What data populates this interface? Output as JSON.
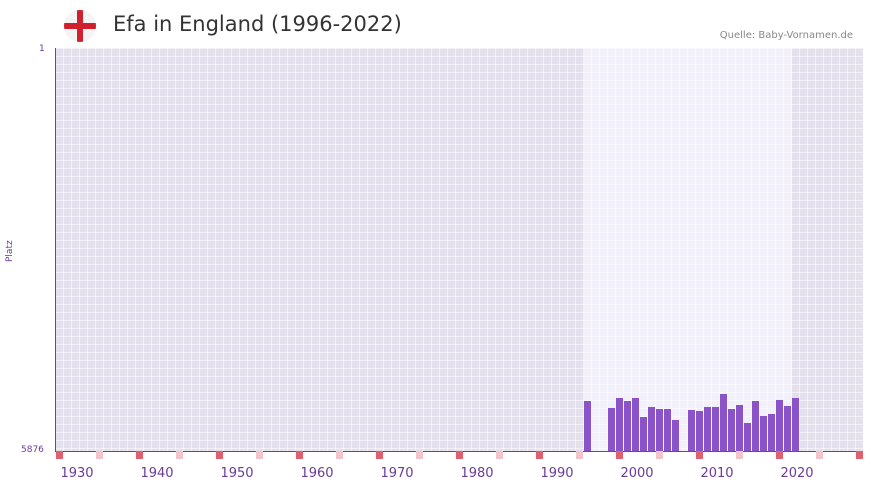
{
  "header": {
    "title": "Efa in England (1996-2022)",
    "source": "Quelle: Baby-Vornamen.de",
    "flag_icon": "england-flag-icon"
  },
  "colors": {
    "bar": "#8a54c8",
    "plot_bg": "#e4e0ee",
    "highlight_bg": "#f2f0fa",
    "marker_major": "#e06070",
    "marker_minor": "#f2c4cc",
    "axis": "#7a3b9e"
  },
  "chart_data": {
    "type": "bar",
    "title": "Efa in England (1996-2022)",
    "xlabel": "",
    "ylabel": "Platz",
    "y_inverted": true,
    "ylim": [
      5876,
      1
    ],
    "y_ticks": [
      "1",
      "5876"
    ],
    "x_ticks": [
      "1930",
      "1940",
      "1950",
      "1960",
      "1970",
      "1980",
      "1990",
      "2000",
      "2010",
      "2020"
    ],
    "xlim": [
      1929,
      2029
    ],
    "highlight_range": [
      1995,
      2021
    ],
    "categories": [
      1995,
      1998,
      1999,
      2000,
      2001,
      2002,
      2003,
      2004,
      2005,
      2006,
      2008,
      2009,
      2010,
      2011,
      2012,
      2013,
      2014,
      2015,
      2016,
      2017,
      2018,
      2019,
      2020,
      2021
    ],
    "values": [
      5140,
      5250,
      5100,
      5150,
      5100,
      5380,
      5240,
      5270,
      5270,
      5420,
      5280,
      5290,
      5230,
      5240,
      5050,
      5260,
      5200,
      5470,
      5150,
      5370,
      5330,
      5130,
      5220,
      5110
    ]
  },
  "axis": {
    "y_top_label": "1",
    "y_bottom_label": "5876",
    "y_name": "Platz"
  }
}
